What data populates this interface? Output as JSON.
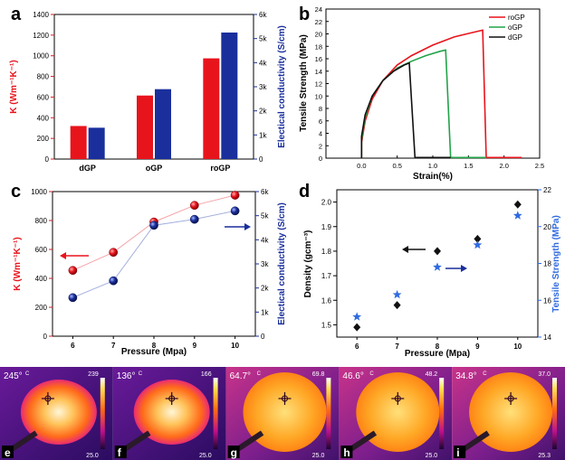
{
  "panel_letters": {
    "a": "a",
    "b": "b",
    "c": "c",
    "d": "d"
  },
  "colors": {
    "red": "#e8141c",
    "blue": "#1a2f9c",
    "green": "#22a34a",
    "black": "#111111",
    "star": "#2f6be0"
  },
  "chart_data": [
    {
      "id": "a",
      "type": "bar",
      "categories": [
        "dGP",
        "oGP",
        "roGP"
      ],
      "series": [
        {
          "values": [
            320,
            615,
            975
          ],
          "axis": "left",
          "color": "#e8141c"
        },
        {
          "values": [
            1.3,
            2.9,
            5.25
          ],
          "axis": "right",
          "color": "#1a2f9c"
        }
      ],
      "ylim": [
        0,
        1400
      ],
      "yticks": [
        "0",
        "200",
        "400",
        "600",
        "800",
        "1000",
        "1200",
        "1400"
      ],
      "y2lim": [
        0,
        6
      ],
      "y2ticks": [
        "0",
        "1k",
        "2k",
        "3k",
        "4k",
        "5k",
        "6k"
      ],
      "ylabel": "K (Wm⁻¹K⁻¹)",
      "y2label": "Electical conductivity (S/cm)",
      "xlabel": ""
    },
    {
      "id": "b",
      "type": "line",
      "xlabel": "Strain(%)",
      "ylabel": "Tensile Strength (MPa)",
      "xlim": [
        -0.5,
        2.5
      ],
      "ylim": [
        0,
        24
      ],
      "xticks": [
        "0.0",
        "0.5",
        "1.0",
        "1.5",
        "2.0",
        "2.5"
      ],
      "yticks": [
        "0",
        "2",
        "4",
        "6",
        "8",
        "10",
        "12",
        "14",
        "16",
        "18",
        "20",
        "22",
        "24"
      ],
      "legend_position": "top-right",
      "series": [
        {
          "name": "roGP",
          "color": "#e8141c",
          "points": [
            [
              0,
              0
            ],
            [
              0,
              2.5
            ],
            [
              0.05,
              6
            ],
            [
              0.15,
              9.5
            ],
            [
              0.3,
              12.5
            ],
            [
              0.5,
              15
            ],
            [
              0.7,
              16.5
            ],
            [
              1.0,
              18.2
            ],
            [
              1.3,
              19.5
            ],
            [
              1.55,
              20.2
            ],
            [
              1.7,
              20.6
            ],
            [
              1.75,
              0.1
            ],
            [
              2.25,
              0.1
            ]
          ]
        },
        {
          "name": "oGP",
          "color": "#22a34a",
          "points": [
            [
              0,
              0
            ],
            [
              0,
              3
            ],
            [
              0.05,
              6.5
            ],
            [
              0.15,
              10
            ],
            [
              0.3,
              12.5
            ],
            [
              0.5,
              14.5
            ],
            [
              0.7,
              15.6
            ],
            [
              0.9,
              16.5
            ],
            [
              1.1,
              17.2
            ],
            [
              1.18,
              17.4
            ],
            [
              1.25,
              0.1
            ],
            [
              1.75,
              0.1
            ]
          ]
        },
        {
          "name": "dGP",
          "color": "#111111",
          "points": [
            [
              0,
              0
            ],
            [
              0,
              3.5
            ],
            [
              0.05,
              7
            ],
            [
              0.15,
              10
            ],
            [
              0.3,
              12.5
            ],
            [
              0.45,
              14
            ],
            [
              0.6,
              15
            ],
            [
              0.67,
              15.3
            ],
            [
              0.75,
              0.1
            ],
            [
              1.25,
              0.1
            ]
          ]
        }
      ]
    },
    {
      "id": "c",
      "type": "scatter",
      "xlabel": "Pressure (Mpa)",
      "ylabel": "K (Wm⁻¹K⁻¹)",
      "y2label": "Electical conductivity (S/cm)",
      "x": [
        6,
        7,
        8,
        9,
        10
      ],
      "xticks": [
        "6",
        "7",
        "8",
        "9",
        "10"
      ],
      "ylim": [
        0,
        1000
      ],
      "yticks": [
        "0",
        "200",
        "400",
        "600",
        "800",
        "1000"
      ],
      "y2lim": [
        0,
        6
      ],
      "y2ticks": [
        "0",
        "1k",
        "2k",
        "3k",
        "4k",
        "5k",
        "6k"
      ],
      "series": [
        {
          "values": [
            455,
            580,
            790,
            905,
            975
          ],
          "axis": "left",
          "color": "#e8141c"
        },
        {
          "values": [
            1.6,
            2.3,
            4.6,
            4.85,
            5.2
          ],
          "axis": "right",
          "color": "#1a2f9c"
        }
      ]
    },
    {
      "id": "d",
      "type": "scatter",
      "xlabel": "Pressure (Mpa)",
      "ylabel": "Density (gcm⁻³)",
      "y2label": "Tensile Strength (MPa)",
      "x": [
        6,
        7,
        8,
        9,
        10
      ],
      "xticks": [
        "6",
        "7",
        "8",
        "9",
        "10"
      ],
      "xlim": [
        5.5,
        10.5
      ],
      "ylim": [
        1.45,
        2.05
      ],
      "yticks": [
        "1.5",
        "1.6",
        "1.7",
        "1.8",
        "1.9",
        "2.0"
      ],
      "y2lim": [
        14,
        22
      ],
      "y2ticks": [
        "14",
        "16",
        "18",
        "20",
        "22"
      ],
      "series": [
        {
          "values": [
            1.49,
            1.58,
            1.8,
            1.85,
            1.99
          ],
          "axis": "left",
          "marker": "diamond",
          "color": "#111111"
        },
        {
          "values": [
            15.1,
            16.3,
            17.8,
            19.0,
            20.6
          ],
          "axis": "right",
          "marker": "star",
          "color": "#2f6be0"
        }
      ]
    }
  ],
  "thermal": [
    {
      "letter": "e",
      "temp": "245°",
      "unit": "C",
      "max": "239",
      "min": "25.0"
    },
    {
      "letter": "f",
      "temp": "136°",
      "unit": "C",
      "max": "166",
      "min": "25.0"
    },
    {
      "letter": "g",
      "temp": "64.7°",
      "unit": "C",
      "max": "69.8",
      "min": "25.0"
    },
    {
      "letter": "h",
      "temp": "46.6°",
      "unit": "C",
      "max": "48.2",
      "min": "25.0"
    },
    {
      "letter": "i",
      "temp": "34.8°",
      "unit": "C",
      "max": "37.0",
      "min": "25.3"
    }
  ]
}
